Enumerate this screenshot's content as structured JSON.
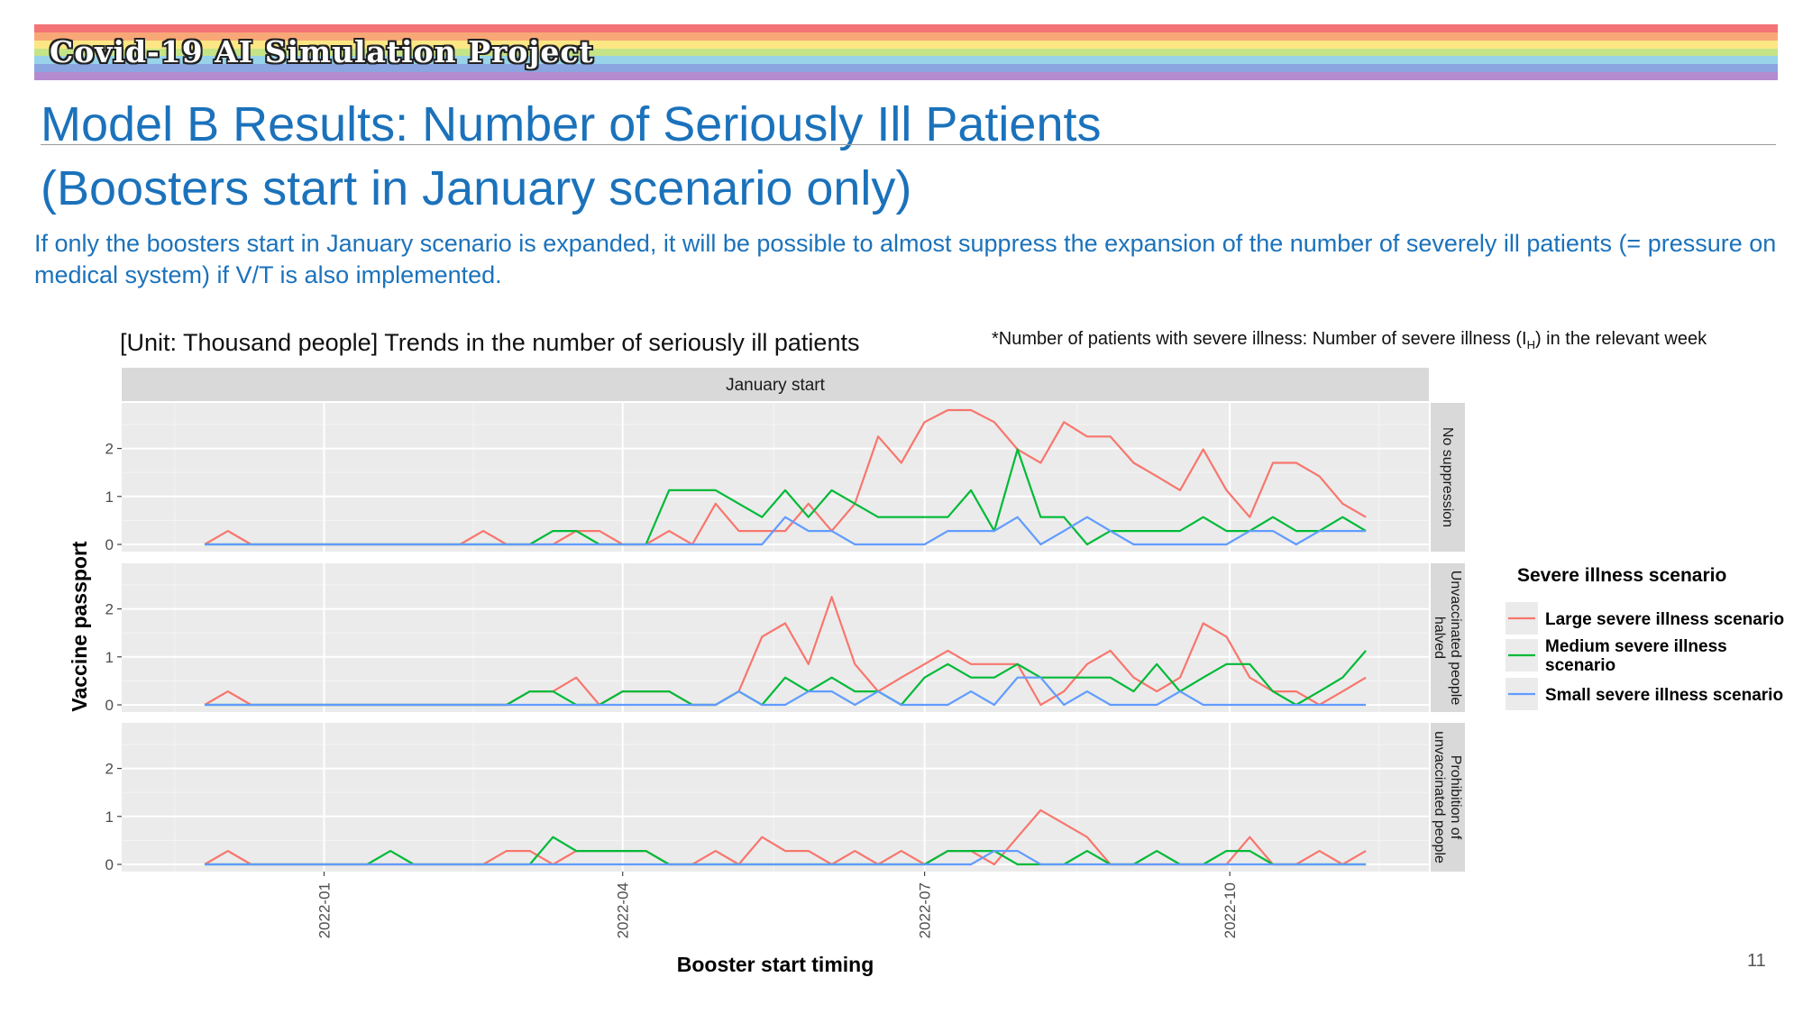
{
  "banner": {
    "text": "Covid-19 AI Simulation Project",
    "colors": [
      "#f47376",
      "#f8a877",
      "#fde784",
      "#c5e487",
      "#98d3ea",
      "#8aa5e0",
      "#b58bd0"
    ]
  },
  "slide": {
    "title_line1": "Model B Results: Number of Seriously Ill Patients",
    "title_line2": "(Boosters start in January scenario only)",
    "description": "If only the boosters start in January scenario is expanded, it will be possible to almost suppress the expansion of the number of severely ill patients (= pressure on medical system) if V/T is also implemented.",
    "unit_label": "[Unit: Thousand people] Trends in the number of seriously ill patients",
    "note_prefix": "*Number of patients with severe illness: Number of severe illness (I",
    "note_sub": "H",
    "note_suffix": ") in the relevant week",
    "page_number": "11"
  },
  "chart_data": {
    "type": "line",
    "facet_column_title": "January start",
    "xlabel": "Booster start timing",
    "ylabel": "Vaccine passport",
    "x_ticks": [
      "2022-01",
      "2022-04",
      "2022-07",
      "2022-10"
    ],
    "y_ticks": [
      0,
      1,
      2
    ],
    "ylim": [
      -0.15,
      2.95
    ],
    "x_start": "2021-11-26",
    "x_step_days": 7,
    "x_range": [
      "2021-11-01",
      "2022-11-30"
    ],
    "legend": {
      "title": "Severe illness scenario",
      "position": "right",
      "items": [
        {
          "label_line1": "Large severe illness scenario",
          "label_line2": "",
          "color": "#f8766d"
        },
        {
          "label_line1": "Medium severe illness",
          "label_line2": "scenario",
          "color": "#00ba38"
        },
        {
          "label_line1": "Small severe illness scenario",
          "label_line2": "",
          "color": "#619cff"
        }
      ]
    },
    "panels": [
      {
        "strip_line1": "No suppression",
        "strip_line2": "",
        "series": [
          {
            "name": "Large severe illness scenario",
            "color": "#f8766d",
            "values": [
              0,
              0.28,
              0,
              0,
              0,
              0,
              0,
              0,
              0,
              0,
              0,
              0,
              0.28,
              0,
              0,
              0,
              0.28,
              0.28,
              0,
              0,
              0.28,
              0,
              0.85,
              0.28,
              0.28,
              0.28,
              0.85,
              0.28,
              0.85,
              2.25,
              1.7,
              2.55,
              2.8,
              2.8,
              2.55,
              1.98,
              1.7,
              2.55,
              2.25,
              2.25,
              1.7,
              1.42,
              1.13,
              1.98,
              1.13,
              0.57,
              1.7,
              1.7,
              1.42,
              0.85,
              0.57
            ]
          },
          {
            "name": "Medium severe illness scenario",
            "color": "#00ba38",
            "values": [
              0,
              0,
              0,
              0,
              0,
              0,
              0,
              0,
              0,
              0,
              0,
              0,
              0,
              0,
              0,
              0.28,
              0.28,
              0,
              0,
              0,
              1.13,
              1.13,
              1.13,
              0.85,
              0.57,
              1.13,
              0.57,
              1.13,
              0.85,
              0.57,
              0.57,
              0.57,
              0.57,
              1.13,
              0.28,
              1.98,
              0.57,
              0.57,
              0,
              0.28,
              0.28,
              0.28,
              0.28,
              0.57,
              0.28,
              0.28,
              0.57,
              0.28,
              0.28,
              0.57,
              0.28
            ]
          },
          {
            "name": "Small severe illness scenario",
            "color": "#619cff",
            "values": [
              0,
              0,
              0,
              0,
              0,
              0,
              0,
              0,
              0,
              0,
              0,
              0,
              0,
              0,
              0,
              0,
              0,
              0,
              0,
              0,
              0,
              0,
              0,
              0,
              0,
              0.57,
              0.28,
              0.28,
              0,
              0,
              0,
              0,
              0.28,
              0.28,
              0.28,
              0.57,
              0,
              0.28,
              0.57,
              0.28,
              0,
              0,
              0,
              0,
              0,
              0.28,
              0.28,
              0,
              0.28,
              0.28,
              0.28
            ]
          }
        ]
      },
      {
        "strip_line1": "Unvaccinated people",
        "strip_line2": "halved",
        "series": [
          {
            "name": "Large severe illness scenario",
            "color": "#f8766d",
            "values": [
              0,
              0.28,
              0,
              0,
              0,
              0,
              0,
              0,
              0,
              0,
              0,
              0,
              0,
              0,
              0.28,
              0.28,
              0.57,
              0,
              0.28,
              0.28,
              0.28,
              0,
              0,
              0.28,
              1.42,
              1.7,
              0.85,
              2.25,
              0.85,
              0.28,
              0.57,
              0.85,
              1.13,
              0.85,
              0.85,
              0.85,
              0,
              0.28,
              0.85,
              1.13,
              0.57,
              0.28,
              0.57,
              1.7,
              1.42,
              0.57,
              0.28,
              0.28,
              0,
              0.28,
              0.57
            ]
          },
          {
            "name": "Medium severe illness scenario",
            "color": "#00ba38",
            "values": [
              0,
              0,
              0,
              0,
              0,
              0,
              0,
              0,
              0,
              0,
              0,
              0,
              0,
              0,
              0.28,
              0.28,
              0,
              0,
              0.28,
              0.28,
              0.28,
              0,
              0,
              0.28,
              0,
              0.57,
              0.28,
              0.57,
              0.28,
              0.28,
              0,
              0.57,
              0.85,
              0.57,
              0.57,
              0.85,
              0.57,
              0.57,
              0.57,
              0.57,
              0.28,
              0.85,
              0.28,
              0.57,
              0.85,
              0.85,
              0.28,
              0,
              0.28,
              0.57,
              1.13
            ]
          },
          {
            "name": "Small severe illness scenario",
            "color": "#619cff",
            "values": [
              0,
              0,
              0,
              0,
              0,
              0,
              0,
              0,
              0,
              0,
              0,
              0,
              0,
              0,
              0,
              0,
              0,
              0,
              0,
              0,
              0,
              0,
              0,
              0.28,
              0,
              0,
              0.28,
              0.28,
              0,
              0.28,
              0,
              0,
              0,
              0.28,
              0,
              0.57,
              0.57,
              0,
              0.28,
              0,
              0,
              0,
              0.28,
              0,
              0,
              0,
              0,
              0,
              0,
              0,
              0
            ]
          }
        ]
      },
      {
        "strip_line1": "Prohibition of",
        "strip_line2": "unvaccinated people",
        "series": [
          {
            "name": "Large severe illness scenario",
            "color": "#f8766d",
            "values": [
              0,
              0.28,
              0,
              0,
              0,
              0,
              0,
              0,
              0,
              0,
              0,
              0,
              0,
              0.28,
              0.28,
              0,
              0.28,
              0.28,
              0.28,
              0.28,
              0,
              0,
              0.28,
              0,
              0.57,
              0.28,
              0.28,
              0,
              0.28,
              0,
              0.28,
              0,
              0.28,
              0.28,
              0,
              0.57,
              1.13,
              0.85,
              0.57,
              0,
              0,
              0,
              0,
              0,
              0,
              0.57,
              0,
              0,
              0.28,
              0,
              0.28
            ]
          },
          {
            "name": "Medium severe illness scenario",
            "color": "#00ba38",
            "values": [
              0,
              0,
              0,
              0,
              0,
              0,
              0,
              0,
              0.28,
              0,
              0,
              0,
              0,
              0,
              0,
              0.57,
              0.28,
              0.28,
              0.28,
              0.28,
              0,
              0,
              0,
              0,
              0,
              0,
              0,
              0,
              0,
              0,
              0,
              0,
              0.28,
              0.28,
              0.28,
              0,
              0,
              0,
              0.28,
              0,
              0,
              0.28,
              0,
              0,
              0.28,
              0.28,
              0,
              0,
              0,
              0,
              0
            ]
          },
          {
            "name": "Small severe illness scenario",
            "color": "#619cff",
            "values": [
              0,
              0,
              0,
              0,
              0,
              0,
              0,
              0,
              0,
              0,
              0,
              0,
              0,
              0,
              0,
              0,
              0,
              0,
              0,
              0,
              0,
              0,
              0,
              0,
              0,
              0,
              0,
              0,
              0,
              0,
              0,
              0,
              0,
              0,
              0.28,
              0.28,
              0,
              0,
              0,
              0,
              0,
              0,
              0,
              0,
              0,
              0,
              0,
              0,
              0,
              0,
              0
            ]
          }
        ]
      }
    ]
  }
}
